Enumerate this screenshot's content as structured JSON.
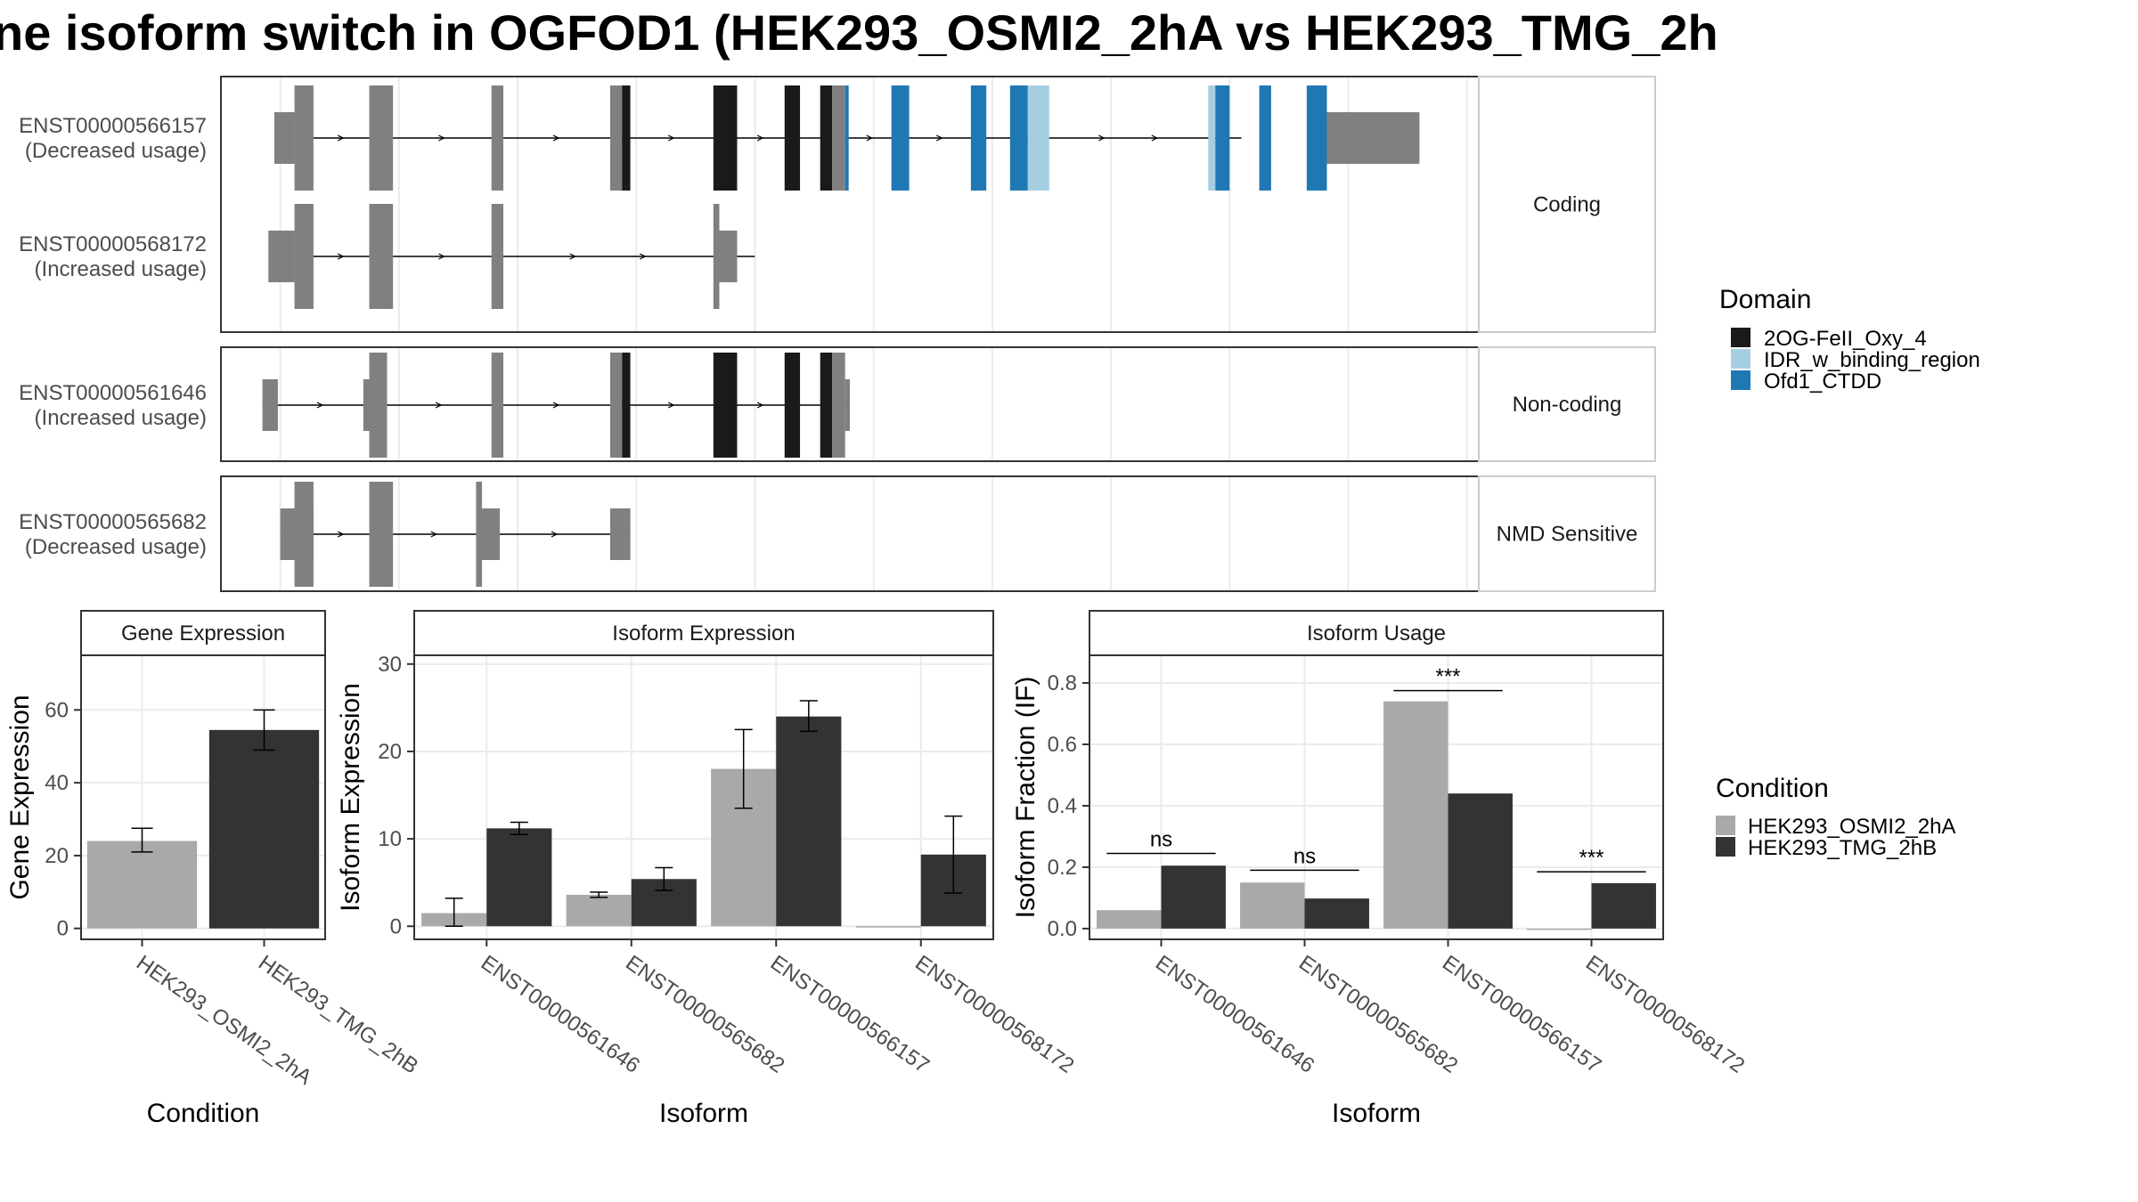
{
  "title": "ne isoform switch in OGFOD1 (HEK293_OSMI2_2hA vs HEK293_TMG_2h",
  "colors": {
    "exon": "#808080",
    "domain_2OG": "#1a1a1a",
    "domain_IDR": "#a6cee3",
    "domain_Ofd1": "#1f78b4",
    "cond_A": "#a9a9a9",
    "cond_B": "#333333"
  },
  "structure": {
    "facets": [
      {
        "label": "Coding",
        "tracks": [
          "ENST00000566157",
          "ENST00000568172"
        ]
      },
      {
        "label": "Non-coding",
        "tracks": [
          "ENST00000561646"
        ]
      },
      {
        "label": "NMD Sensitive",
        "tracks": [
          "ENST00000565682"
        ]
      }
    ],
    "transcripts": [
      {
        "id": "ENST00000566157",
        "usage": "(Decreased usage)",
        "span": [
          4.5,
          86
        ],
        "exons": [
          {
            "s": 4.5,
            "e": 6.2,
            "t": "utr"
          },
          {
            "s": 6.2,
            "e": 7.8,
            "t": "cds"
          },
          {
            "s": 12.5,
            "e": 14.5,
            "t": "cds"
          },
          {
            "s": 22.8,
            "e": 23.8,
            "t": "cds"
          },
          {
            "s": 32.8,
            "e": 33.8,
            "t": "cds"
          },
          {
            "s": 33.8,
            "e": 34.5,
            "t": "dom2"
          },
          {
            "s": 41.5,
            "e": 43.5,
            "t": "dom2"
          },
          {
            "s": 47.5,
            "e": 48.8,
            "t": "dom2"
          },
          {
            "s": 50.5,
            "e": 51.5,
            "t": "dom2"
          },
          {
            "s": 51.5,
            "e": 52.6,
            "t": "cds"
          },
          {
            "s": 52.6,
            "e": 52.9,
            "t": "dom3"
          },
          {
            "s": 56.5,
            "e": 58.0,
            "t": "dom3"
          },
          {
            "s": 63.2,
            "e": 64.5,
            "t": "dom3"
          },
          {
            "s": 66.5,
            "e": 68.0,
            "t": "dom3"
          },
          {
            "s": 68.0,
            "e": 69.8,
            "t": "domIDR"
          },
          {
            "s": 83.2,
            "e": 83.8,
            "t": "domIDR"
          },
          {
            "s": 83.8,
            "e": 85.0,
            "t": "dom3"
          },
          {
            "s": 87.5,
            "e": 88.5,
            "t": "dom3"
          },
          {
            "s": 91.5,
            "e": 93.2,
            "t": "dom3"
          },
          {
            "s": 93.2,
            "e": 101.0,
            "t": "utr"
          }
        ]
      },
      {
        "id": "ENST00000568172",
        "usage": "(Increased usage)",
        "span": [
          4,
          45
        ],
        "exons": [
          {
            "s": 4.0,
            "e": 6.2,
            "t": "utr"
          },
          {
            "s": 6.2,
            "e": 7.8,
            "t": "cds"
          },
          {
            "s": 12.5,
            "e": 14.5,
            "t": "cds"
          },
          {
            "s": 22.8,
            "e": 23.8,
            "t": "cds"
          },
          {
            "s": 41.5,
            "e": 42.0,
            "t": "cds"
          },
          {
            "s": 42.0,
            "e": 43.5,
            "t": "utr"
          }
        ]
      },
      {
        "id": "ENST00000561646",
        "usage": "(Increased usage)",
        "span": [
          3.5,
          53
        ],
        "exons": [
          {
            "s": 3.5,
            "e": 4.8,
            "t": "utr"
          },
          {
            "s": 12.0,
            "e": 12.5,
            "t": "utr"
          },
          {
            "s": 12.5,
            "e": 14.0,
            "t": "cds"
          },
          {
            "s": 22.8,
            "e": 23.8,
            "t": "cds"
          },
          {
            "s": 32.8,
            "e": 33.8,
            "t": "cds"
          },
          {
            "s": 33.8,
            "e": 34.5,
            "t": "dom2"
          },
          {
            "s": 41.5,
            "e": 43.5,
            "t": "dom2"
          },
          {
            "s": 47.5,
            "e": 48.8,
            "t": "dom2"
          },
          {
            "s": 50.5,
            "e": 51.5,
            "t": "dom2"
          },
          {
            "s": 51.5,
            "e": 52.6,
            "t": "cds"
          },
          {
            "s": 52.6,
            "e": 53.0,
            "t": "utr"
          }
        ]
      },
      {
        "id": "ENST00000565682",
        "usage": "(Decreased usage)",
        "span": [
          5,
          34.5
        ],
        "exons": [
          {
            "s": 5.0,
            "e": 7.8,
            "t": "utr"
          },
          {
            "s": 6.2,
            "e": 7.8,
            "t": "cds"
          },
          {
            "s": 12.5,
            "e": 14.5,
            "t": "cds"
          },
          {
            "s": 21.5,
            "e": 22.0,
            "t": "cds"
          },
          {
            "s": 22.0,
            "e": 23.5,
            "t": "utr"
          },
          {
            "s": 32.8,
            "e": 34.5,
            "t": "utr"
          }
        ]
      }
    ],
    "legend": {
      "title": "Domain",
      "items": [
        {
          "label": "2OG-FeII_Oxy_4",
          "key": "dom2"
        },
        {
          "label": "IDR_w_binding_region",
          "key": "domIDR"
        },
        {
          "label": "Ofd1_CTDD",
          "key": "dom3"
        }
      ]
    }
  },
  "chart_data": [
    {
      "type": "bar",
      "title": "Gene Expression",
      "xlabel": "Condition",
      "ylabel": "Gene Expression",
      "ylim": [
        -3,
        75
      ],
      "yticks": [
        0,
        20,
        40,
        60
      ],
      "categories": [
        "HEK293_OSMI2_2hA",
        "HEK293_TMG_2hB"
      ],
      "values": [
        24,
        54.5
      ],
      "errors": [
        [
          21,
          27.5
        ],
        [
          49,
          60
        ]
      ],
      "colors": [
        "cond_A",
        "cond_B"
      ]
    },
    {
      "type": "bar",
      "title": "Isoform Expression",
      "xlabel": "Isoform",
      "ylabel": "Isoform Expression",
      "ylim": [
        -1.5,
        31
      ],
      "yticks": [
        0,
        10,
        20,
        30
      ],
      "categories": [
        "ENST00000561646",
        "ENST00000565682",
        "ENST00000566157",
        "ENST00000568172"
      ],
      "series": [
        {
          "name": "HEK293_OSMI2_2hA",
          "values": [
            1.5,
            3.6,
            18,
            0
          ],
          "errors": [
            [
              0,
              3.2
            ],
            [
              3.3,
              3.9
            ],
            [
              13.5,
              22.5
            ],
            [
              0,
              0
            ]
          ]
        },
        {
          "name": "HEK293_TMG_2hB",
          "values": [
            11.2,
            5.4,
            24,
            8.2
          ],
          "errors": [
            [
              10.5,
              11.9
            ],
            [
              4.1,
              6.7
            ],
            [
              22.3,
              25.8
            ],
            [
              3.8,
              12.6
            ]
          ]
        }
      ]
    },
    {
      "type": "bar",
      "title": "Isoform Usage",
      "xlabel": "Isoform",
      "ylabel": "Isoform Fraction (IF)",
      "ylim": [
        -0.035,
        0.89
      ],
      "yticks": [
        "0.0",
        "0.2",
        "0.4",
        "0.6",
        "0.8"
      ],
      "categories": [
        "ENST00000561646",
        "ENST00000565682",
        "ENST00000566157",
        "ENST00000568172"
      ],
      "series": [
        {
          "name": "HEK293_OSMI2_2hA",
          "values": [
            0.06,
            0.15,
            0.74,
            0
          ]
        },
        {
          "name": "HEK293_TMG_2hB",
          "values": [
            0.205,
            0.098,
            0.44,
            0.148
          ]
        }
      ],
      "significance": [
        {
          "category": 0,
          "label": "ns",
          "y": 0.245
        },
        {
          "category": 1,
          "label": "ns",
          "y": 0.19
        },
        {
          "category": 2,
          "label": "***",
          "y": 0.775
        },
        {
          "category": 3,
          "label": "***",
          "y": 0.185
        }
      ]
    }
  ],
  "condition_legend": {
    "title": "Condition",
    "items": [
      {
        "label": "HEK293_OSMI2_2hA",
        "key": "cond_A"
      },
      {
        "label": "HEK293_TMG_2hB",
        "key": "cond_B"
      }
    ]
  }
}
